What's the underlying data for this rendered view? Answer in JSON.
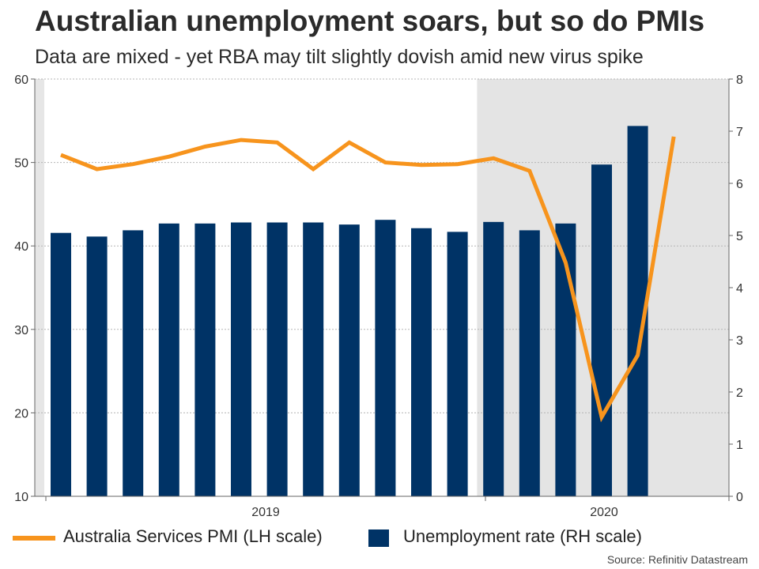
{
  "header": {
    "title": "Australian unemployment soars, but so do PMIs",
    "subtitle": "Data are mixed - yet RBA may tilt slightly dovish amid new virus spike"
  },
  "legend": {
    "pmi_label": "Australia Services PMI (LH scale)",
    "unemployment_label": "Unemployment rate (RH scale)"
  },
  "source": "Source: Refinitiv Datastream",
  "chart_data": {
    "type": "bar",
    "x_year_labels": [
      "2019",
      "2020"
    ],
    "left_axis": {
      "ylim": [
        10,
        60
      ],
      "ticks": [
        "10",
        "20",
        "30",
        "40",
        "50",
        "60"
      ]
    },
    "right_axis": {
      "ylim": [
        0,
        8
      ],
      "ticks": [
        "0",
        "1",
        "2",
        "3",
        "4",
        "5",
        "6",
        "7",
        "8"
      ]
    },
    "shaded_period_start_index": 12,
    "series": [
      {
        "name": "Unemployment rate (RH scale)",
        "kind": "bar",
        "axis": "right",
        "color": "#003366",
        "values": [
          5.05,
          4.98,
          5.1,
          5.23,
          5.23,
          5.25,
          5.25,
          5.25,
          5.21,
          5.3,
          5.14,
          5.07,
          5.26,
          5.1,
          5.23,
          6.36,
          7.1
        ]
      },
      {
        "name": "Australia Services PMI (LH scale)",
        "kind": "line",
        "axis": "left",
        "color": "#f7941d",
        "values": [
          50.9,
          49.2,
          49.8,
          50.7,
          51.9,
          52.7,
          52.4,
          49.2,
          52.4,
          50.0,
          49.7,
          49.8,
          50.5,
          49.0,
          38.0,
          19.5,
          26.9,
          53.1
        ]
      }
    ]
  }
}
